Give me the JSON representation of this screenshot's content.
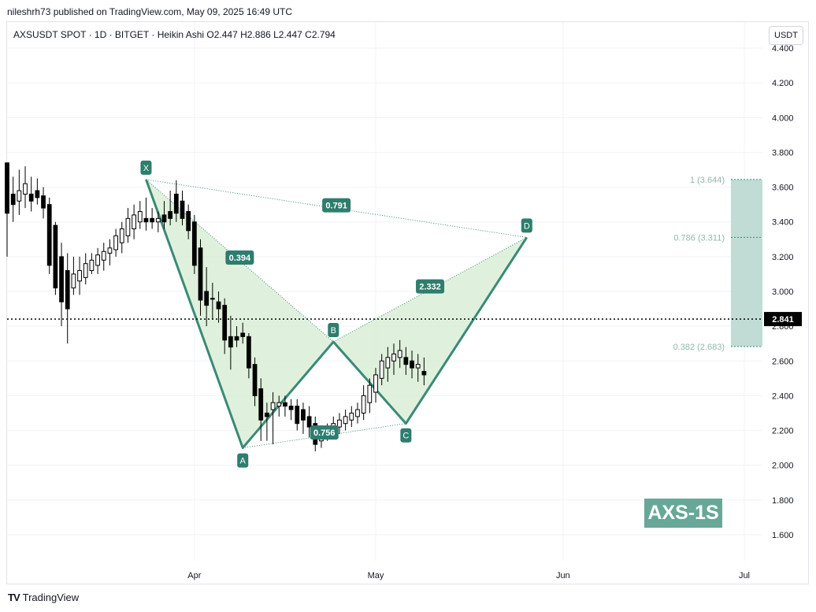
{
  "header": {
    "publish_caption": "nileshrh73 published on TradingView.com, May 09, 2025 16:49 UTC",
    "legend": "AXSUSDT SPOT · 1D · BITGET · Heikin Ashi   O2.447   H2.886   L2.447   C2.794",
    "currency": "USDT"
  },
  "branding": {
    "logo_text": "TradingView",
    "logo_mark": "TV",
    "watermark": "AXS-1S"
  },
  "colors": {
    "candle": "#000000",
    "pattern_fill": "#d4ecd0",
    "pattern_line": "#3a8a77",
    "label_bg": "#2e7d6e",
    "fib_box": "#b6d6cc",
    "fib_text": "#8fb9ad",
    "grid": "#f0f3fa",
    "axis_text": "#131722",
    "price_tag": "#000000"
  },
  "chart_data": {
    "type": "candlestick",
    "y_axis": {
      "min": 1.45,
      "max": 4.55,
      "side": "right",
      "ticks": [
        "4.400",
        "4.200",
        "4.000",
        "3.800",
        "3.600",
        "3.400",
        "3.200",
        "3.000",
        "2.800",
        "2.600",
        "2.400",
        "2.200",
        "2.000",
        "1.800",
        "1.600"
      ],
      "tick_values": [
        4.4,
        4.2,
        4.0,
        3.8,
        3.6,
        3.4,
        3.2,
        3.0,
        2.8,
        2.6,
        2.4,
        2.2,
        2.0,
        1.8,
        1.6
      ]
    },
    "x_axis": {
      "start_date": "2025-03-01",
      "end_date": "2025-07-04",
      "ticks": [
        {
          "label": "Apr",
          "date": "2025-04-01"
        },
        {
          "label": "May",
          "date": "2025-05-01"
        },
        {
          "label": "Jun",
          "date": "2025-06-01"
        },
        {
          "label": "Jul",
          "date": "2025-07-01"
        }
      ]
    },
    "last_price": {
      "label": "2.841",
      "value": 2.841
    },
    "candles": [
      {
        "date": "2025-03-01",
        "o": 3.74,
        "h": 3.74,
        "l": 3.2,
        "c": 3.45
      },
      {
        "date": "2025-03-02",
        "o": 3.56,
        "h": 3.66,
        "l": 3.4,
        "c": 3.5
      },
      {
        "date": "2025-03-03",
        "o": 3.52,
        "h": 3.7,
        "l": 3.44,
        "c": 3.58
      },
      {
        "date": "2025-03-04",
        "o": 3.56,
        "h": 3.72,
        "l": 3.48,
        "c": 3.62
      },
      {
        "date": "2025-03-05",
        "o": 3.56,
        "h": 3.66,
        "l": 3.46,
        "c": 3.52
      },
      {
        "date": "2025-03-06",
        "o": 3.58,
        "h": 3.65,
        "l": 3.5,
        "c": 3.54
      },
      {
        "date": "2025-03-07",
        "o": 3.55,
        "h": 3.6,
        "l": 3.42,
        "c": 3.48
      },
      {
        "date": "2025-03-08",
        "o": 3.5,
        "h": 3.54,
        "l": 3.1,
        "c": 3.15
      },
      {
        "date": "2025-03-09",
        "o": 3.38,
        "h": 3.4,
        "l": 2.98,
        "c": 3.02
      },
      {
        "date": "2025-03-10",
        "o": 3.2,
        "h": 3.28,
        "l": 2.8,
        "c": 2.94
      },
      {
        "date": "2025-03-11",
        "o": 3.12,
        "h": 3.22,
        "l": 2.7,
        "c": 2.9
      },
      {
        "date": "2025-03-12",
        "o": 3.02,
        "h": 3.2,
        "l": 2.98,
        "c": 3.1
      },
      {
        "date": "2025-03-13",
        "o": 3.06,
        "h": 3.2,
        "l": 2.98,
        "c": 3.12
      },
      {
        "date": "2025-03-14",
        "o": 3.08,
        "h": 3.22,
        "l": 3.04,
        "c": 3.16
      },
      {
        "date": "2025-03-15",
        "o": 3.12,
        "h": 3.22,
        "l": 3.1,
        "c": 3.18
      },
      {
        "date": "2025-03-16",
        "o": 3.15,
        "h": 3.25,
        "l": 3.1,
        "c": 3.21
      },
      {
        "date": "2025-03-17",
        "o": 3.18,
        "h": 3.28,
        "l": 3.12,
        "c": 3.23
      },
      {
        "date": "2025-03-18",
        "o": 3.22,
        "h": 3.3,
        "l": 3.15,
        "c": 3.25
      },
      {
        "date": "2025-03-19",
        "o": 3.24,
        "h": 3.36,
        "l": 3.2,
        "c": 3.32
      },
      {
        "date": "2025-03-20",
        "o": 3.28,
        "h": 3.4,
        "l": 3.22,
        "c": 3.36
      },
      {
        "date": "2025-03-21",
        "o": 3.32,
        "h": 3.48,
        "l": 3.28,
        "c": 3.42
      },
      {
        "date": "2025-03-22",
        "o": 3.36,
        "h": 3.5,
        "l": 3.3,
        "c": 3.44
      },
      {
        "date": "2025-03-23",
        "o": 3.4,
        "h": 3.52,
        "l": 3.36,
        "c": 3.46
      },
      {
        "date": "2025-03-24",
        "o": 3.42,
        "h": 3.54,
        "l": 3.35,
        "c": 3.4
      },
      {
        "date": "2025-03-25",
        "o": 3.42,
        "h": 3.48,
        "l": 3.36,
        "c": 3.4
      },
      {
        "date": "2025-03-26",
        "o": 3.4,
        "h": 3.46,
        "l": 3.34,
        "c": 3.42
      },
      {
        "date": "2025-03-27",
        "o": 3.44,
        "h": 3.52,
        "l": 3.36,
        "c": 3.4
      },
      {
        "date": "2025-03-28",
        "o": 3.46,
        "h": 3.58,
        "l": 3.38,
        "c": 3.42
      },
      {
        "date": "2025-03-29",
        "o": 3.56,
        "h": 3.64,
        "l": 3.4,
        "c": 3.45
      },
      {
        "date": "2025-03-30",
        "o": 3.52,
        "h": 3.58,
        "l": 3.38,
        "c": 3.42
      },
      {
        "date": "2025-03-31",
        "o": 3.46,
        "h": 3.5,
        "l": 3.3,
        "c": 3.35
      },
      {
        "date": "2025-04-01",
        "o": 3.4,
        "h": 3.44,
        "l": 3.1,
        "c": 3.15
      },
      {
        "date": "2025-04-02",
        "o": 3.25,
        "h": 3.3,
        "l": 2.86,
        "c": 2.95
      },
      {
        "date": "2025-04-03",
        "o": 3.0,
        "h": 3.14,
        "l": 2.8,
        "c": 2.92
      },
      {
        "date": "2025-04-04",
        "o": 2.96,
        "h": 3.05,
        "l": 2.84,
        "c": 2.96
      },
      {
        "date": "2025-04-05",
        "o": 2.94,
        "h": 3.0,
        "l": 2.82,
        "c": 2.9
      },
      {
        "date": "2025-04-06",
        "o": 2.92,
        "h": 2.96,
        "l": 2.64,
        "c": 2.72
      },
      {
        "date": "2025-04-07",
        "o": 2.74,
        "h": 2.86,
        "l": 2.55,
        "c": 2.68
      },
      {
        "date": "2025-04-08",
        "o": 2.74,
        "h": 2.8,
        "l": 2.68,
        "c": 2.72
      },
      {
        "date": "2025-04-09",
        "o": 2.76,
        "h": 2.82,
        "l": 2.7,
        "c": 2.74
      },
      {
        "date": "2025-04-10",
        "o": 2.74,
        "h": 2.76,
        "l": 2.5,
        "c": 2.56
      },
      {
        "date": "2025-04-11",
        "o": 2.58,
        "h": 2.62,
        "l": 2.34,
        "c": 2.4
      },
      {
        "date": "2025-04-12",
        "o": 2.44,
        "h": 2.5,
        "l": 2.14,
        "c": 2.26
      },
      {
        "date": "2025-04-13",
        "o": 2.3,
        "h": 2.36,
        "l": 2.14,
        "c": 2.28
      },
      {
        "date": "2025-04-14",
        "o": 2.32,
        "h": 2.42,
        "l": 2.12,
        "c": 2.36
      },
      {
        "date": "2025-04-15",
        "o": 2.34,
        "h": 2.4,
        "l": 2.28,
        "c": 2.36
      },
      {
        "date": "2025-04-16",
        "o": 2.36,
        "h": 2.4,
        "l": 2.28,
        "c": 2.34
      },
      {
        "date": "2025-04-17",
        "o": 2.34,
        "h": 2.38,
        "l": 2.26,
        "c": 2.32
      },
      {
        "date": "2025-04-18",
        "o": 2.34,
        "h": 2.38,
        "l": 2.2,
        "c": 2.24
      },
      {
        "date": "2025-04-19",
        "o": 2.32,
        "h": 2.36,
        "l": 2.18,
        "c": 2.26
      },
      {
        "date": "2025-04-20",
        "o": 2.28,
        "h": 2.34,
        "l": 2.16,
        "c": 2.22
      },
      {
        "date": "2025-04-21",
        "o": 2.24,
        "h": 2.28,
        "l": 2.08,
        "c": 2.12
      },
      {
        "date": "2025-04-22",
        "o": 2.14,
        "h": 2.22,
        "l": 2.1,
        "c": 2.2
      },
      {
        "date": "2025-04-23",
        "o": 2.18,
        "h": 2.24,
        "l": 2.14,
        "c": 2.2
      },
      {
        "date": "2025-04-24",
        "o": 2.2,
        "h": 2.28,
        "l": 2.16,
        "c": 2.24
      },
      {
        "date": "2025-04-25",
        "o": 2.22,
        "h": 2.3,
        "l": 2.18,
        "c": 2.26
      },
      {
        "date": "2025-04-26",
        "o": 2.24,
        "h": 2.32,
        "l": 2.2,
        "c": 2.28
      },
      {
        "date": "2025-04-27",
        "o": 2.26,
        "h": 2.34,
        "l": 2.22,
        "c": 2.3
      },
      {
        "date": "2025-04-28",
        "o": 2.28,
        "h": 2.36,
        "l": 2.24,
        "c": 2.32
      },
      {
        "date": "2025-04-29",
        "o": 2.3,
        "h": 2.46,
        "l": 2.26,
        "c": 2.4
      },
      {
        "date": "2025-04-30",
        "o": 2.36,
        "h": 2.5,
        "l": 2.3,
        "c": 2.46
      },
      {
        "date": "2025-05-01",
        "o": 2.42,
        "h": 2.56,
        "l": 2.36,
        "c": 2.52
      },
      {
        "date": "2025-05-02",
        "o": 2.5,
        "h": 2.64,
        "l": 2.46,
        "c": 2.6
      },
      {
        "date": "2025-05-03",
        "o": 2.56,
        "h": 2.68,
        "l": 2.48,
        "c": 2.62
      },
      {
        "date": "2025-05-04",
        "o": 2.6,
        "h": 2.7,
        "l": 2.52,
        "c": 2.64
      },
      {
        "date": "2025-05-05",
        "o": 2.62,
        "h": 2.72,
        "l": 2.56,
        "c": 2.66
      },
      {
        "date": "2025-05-06",
        "o": 2.62,
        "h": 2.68,
        "l": 2.52,
        "c": 2.58
      },
      {
        "date": "2025-05-07",
        "o": 2.6,
        "h": 2.66,
        "l": 2.5,
        "c": 2.56
      },
      {
        "date": "2025-05-08",
        "o": 2.56,
        "h": 2.64,
        "l": 2.48,
        "c": 2.58
      },
      {
        "date": "2025-05-09",
        "o": 2.54,
        "h": 2.62,
        "l": 2.46,
        "c": 2.52
      }
    ],
    "harmonic_pattern": {
      "points": [
        {
          "label": "X",
          "date": "2025-03-24",
          "price": 3.644
        },
        {
          "label": "A",
          "date": "2025-04-09",
          "price": 2.1
        },
        {
          "label": "B",
          "date": "2025-04-24",
          "price": 2.71
        },
        {
          "label": "C",
          "date": "2025-05-06",
          "price": 2.24
        },
        {
          "label": "D",
          "date": "2025-05-26",
          "price": 3.311
        }
      ],
      "ratios": [
        {
          "label": "0.394"
        },
        {
          "label": "0.756"
        },
        {
          "label": "2.332"
        },
        {
          "label": "0.791"
        }
      ]
    },
    "fib_levels": [
      {
        "label": "1 (3.644)",
        "value": 3.644
      },
      {
        "label": "0.786 (3.311)",
        "value": 3.311
      },
      {
        "label": "0.382 (2.683)",
        "value": 2.683
      }
    ]
  }
}
